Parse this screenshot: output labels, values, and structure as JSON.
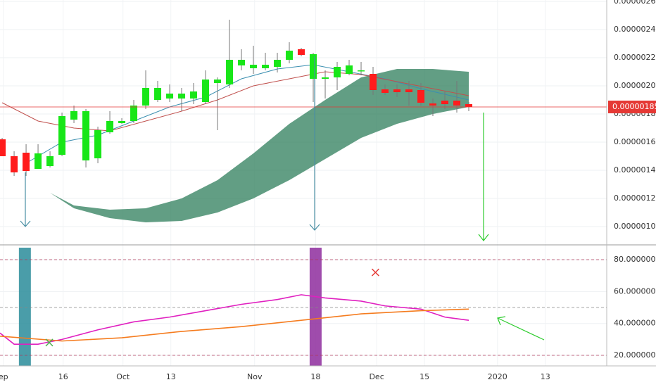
{
  "chart_data": [
    {
      "type": "candlestick",
      "x": [
        0,
        1,
        2,
        3,
        4,
        5,
        6,
        7,
        8,
        9,
        10,
        11,
        12,
        13,
        14,
        15,
        16,
        17,
        18,
        19,
        20,
        21,
        22,
        23,
        24,
        25,
        26,
        27,
        28,
        29,
        30,
        31,
        32,
        33,
        34,
        35,
        36,
        37,
        38,
        39
      ],
      "open": [
        1.62e-06,
        1.5e-06,
        1.525e-06,
        1.41e-06,
        1.43e-06,
        1.51e-06,
        1.76e-06,
        1.47e-06,
        1.485e-06,
        1.67e-06,
        1.735e-06,
        1.75e-06,
        1.86e-06,
        1.9e-06,
        1.91e-06,
        1.91e-06,
        1.91e-06,
        1.885e-06,
        2.02e-06,
        2.01e-06,
        2.145e-06,
        2.125e-06,
        2.125e-06,
        2.135e-06,
        2.185e-06,
        2.26e-06,
        2.05e-06,
        2.05e-06,
        2.06e-06,
        2.085e-06,
        2.11e-06,
        2.085e-06,
        1.975e-06,
        1.975e-06,
        1.975e-06,
        1.97e-06,
        1.875e-06,
        1.895e-06,
        1.895e-06,
        1.87e-06
      ],
      "high": [
        1.63e-06,
        1.535e-06,
        1.585e-06,
        1.585e-06,
        1.535e-06,
        1.81e-06,
        1.86e-06,
        1.835e-06,
        1.71e-06,
        1.82e-06,
        1.77e-06,
        1.9e-06,
        2.11e-06,
        2.035e-06,
        2.01e-06,
        1.985e-06,
        2.02e-06,
        2.11e-06,
        2.06e-06,
        2.47e-06,
        2.26e-06,
        2.285e-06,
        2.235e-06,
        2.235e-06,
        2.31e-06,
        2.27e-06,
        2.235e-06,
        2.11e-06,
        2.17e-06,
        2.185e-06,
        2.17e-06,
        2.135e-06,
        2.01e-06,
        2.01e-06,
        2.035e-06,
        2.02e-06,
        1.91e-06,
        1.96e-06,
        2.035e-06,
        1.885e-06
      ],
      "low": [
        1.5e-06,
        1.36e-06,
        1.36e-06,
        1.41e-06,
        1.42e-06,
        1.5e-06,
        1.735e-06,
        1.42e-06,
        1.45e-06,
        1.66e-06,
        1.73e-06,
        1.735e-06,
        1.835e-06,
        1.885e-06,
        1.885e-06,
        1.82e-06,
        1.87e-06,
        1.87e-06,
        1.685e-06,
        1.985e-06,
        2.11e-06,
        2.085e-06,
        2.11e-06,
        2.095e-06,
        2.16e-06,
        2.21e-06,
        1.885e-06,
        1.91e-06,
        1.97e-06,
        2.075e-06,
        2.075e-06,
        1.935e-06,
        1.935e-06,
        1.92e-06,
        1.86e-06,
        1.86e-06,
        1.785e-06,
        1.835e-06,
        1.81e-06,
        1.82e-06
      ],
      "close": [
        1.5e-06,
        1.385e-06,
        1.395e-06,
        1.52e-06,
        1.5e-06,
        1.785e-06,
        1.82e-06,
        1.82e-06,
        1.685e-06,
        1.75e-06,
        1.75e-06,
        1.86e-06,
        1.985e-06,
        1.985e-06,
        1.945e-06,
        1.945e-06,
        1.96e-06,
        2.045e-06,
        2.045e-06,
        2.185e-06,
        2.185e-06,
        2.15e-06,
        2.15e-06,
        2.185e-06,
        2.25e-06,
        2.22e-06,
        2.225e-06,
        2.06e-06,
        2.135e-06,
        2.145e-06,
        2.11e-06,
        1.97e-06,
        1.95e-06,
        1.955e-06,
        1.955e-06,
        1.88e-06,
        1.86e-06,
        1.87e-06,
        1.86e-06,
        1.85e-06
      ],
      "up_color": "#18e618",
      "down_color": "#ff1c1c",
      "lines": [
        {
          "color": "#3b8fb0",
          "x": [
            2,
            5,
            8,
            11,
            14,
            17,
            20,
            23,
            26,
            29,
            32,
            35,
            39
          ],
          "values": [
            1.45e-06,
            1.6e-06,
            1.65e-06,
            1.75e-06,
            1.85e-06,
            1.92e-06,
            2.05e-06,
            2.12e-06,
            2.15e-06,
            2.1e-06,
            2.05e-06,
            1.98e-06,
            1.9e-06
          ]
        },
        {
          "color": "#c0504d",
          "x": [
            0,
            3,
            6,
            9,
            12,
            15,
            18,
            21,
            24,
            27,
            30,
            33,
            36,
            39
          ],
          "values": [
            1.88e-06,
            1.75e-06,
            1.7e-06,
            1.68e-06,
            1.75e-06,
            1.82e-06,
            1.9e-06,
            2e-06,
            2.05e-06,
            2.1e-06,
            2.08e-06,
            2.03e-06,
            1.98e-06,
            1.93e-06
          ]
        }
      ],
      "band": {
        "color": "#2e7d5b",
        "x": [
          2,
          4,
          6,
          9,
          12,
          15,
          18,
          21,
          24,
          27,
          30,
          33,
          36,
          39
        ],
        "upper": [
          1.36e-06,
          1.24e-06,
          1.15e-06,
          1.12e-06,
          1.13e-06,
          1.2e-06,
          1.33e-06,
          1.52e-06,
          1.73e-06,
          1.9e-06,
          2.06e-06,
          2.12e-06,
          2.12e-06,
          2.1e-06
        ],
        "lower": [
          1.36e-06,
          1.24e-06,
          1.13e-06,
          1.06e-06,
          1.03e-06,
          1.04e-06,
          1.1e-06,
          1.2e-06,
          1.33e-06,
          1.48e-06,
          1.63e-06,
          1.73e-06,
          1.8e-06,
          1.85e-06
        ]
      },
      "price_line": {
        "value": 1.85e-06,
        "label": "0.00000185",
        "color": "#e53935"
      },
      "xlim": [
        -0.18,
        50.53
      ],
      "ylim": [
        8.85e-07,
        2.61e-06
      ],
      "yticks": [
        {
          "value": 1e-06,
          "label": "0.00000100"
        },
        {
          "value": 1.2e-06,
          "label": "0.00000120"
        },
        {
          "value": 1.4e-06,
          "label": "0.00000140"
        },
        {
          "value": 1.6e-06,
          "label": "0.00000160"
        },
        {
          "value": 1.8e-06,
          "label": "0.00000180"
        },
        {
          "value": 2e-06,
          "label": "0.00000200"
        },
        {
          "value": 2.2e-06,
          "label": "0.00000220"
        },
        {
          "value": 2.4e-06,
          "label": "0.00000240"
        },
        {
          "value": 2.6e-06,
          "label": "0.00000260"
        }
      ]
    },
    {
      "type": "line",
      "series": [
        {
          "color": "#e020c0",
          "x": [
            -0.18,
            1,
            3,
            5,
            8,
            11,
            14,
            17,
            20,
            23,
            25,
            27,
            30,
            32,
            35,
            37,
            39
          ],
          "values": [
            34,
            27,
            27,
            30,
            36,
            41,
            44,
            48,
            52,
            55,
            58,
            56,
            54,
            51,
            49,
            44,
            42
          ]
        },
        {
          "color": "#f57c1f",
          "x": [
            -0.18,
            5,
            10,
            15,
            20,
            25,
            30,
            35,
            39
          ],
          "values": [
            32,
            29,
            31,
            35,
            38,
            42,
            46,
            48,
            49
          ]
        }
      ],
      "levels": [
        80,
        50,
        20
      ],
      "highlights": [
        {
          "x": [
            1.4,
            2.4
          ],
          "color": "#2a8c9a"
        },
        {
          "x": [
            25.7,
            26.7
          ],
          "color": "#8e2d9e"
        }
      ],
      "markers": [
        {
          "x": 3.94,
          "value": 28,
          "color": "#4caf50"
        },
        {
          "x": 31.2,
          "value": 72,
          "color": "#e53935"
        }
      ],
      "xlim": [
        -0.18,
        50.53
      ],
      "ylim": [
        13.4,
        87.5
      ],
      "yticks": [
        {
          "value": 20,
          "label": "20.00000000"
        },
        {
          "value": 40,
          "label": "40.00000000"
        },
        {
          "value": 60,
          "label": "60.00000000"
        },
        {
          "value": 80,
          "label": "80.00000000"
        }
      ],
      "xticks": [
        {
          "value": 0.1,
          "label": "ep"
        },
        {
          "value": 5.1,
          "label": "16"
        },
        {
          "value": 10.1,
          "label": "Oct"
        },
        {
          "value": 14.1,
          "label": "13"
        },
        {
          "value": 21.1,
          "label": "Nov"
        },
        {
          "value": 26.2,
          "label": "18"
        },
        {
          "value": 31.3,
          "label": "Dec"
        },
        {
          "value": 35.3,
          "label": "15"
        },
        {
          "value": 41.4,
          "label": "2020"
        },
        {
          "value": 45.4,
          "label": "13"
        }
      ]
    }
  ]
}
